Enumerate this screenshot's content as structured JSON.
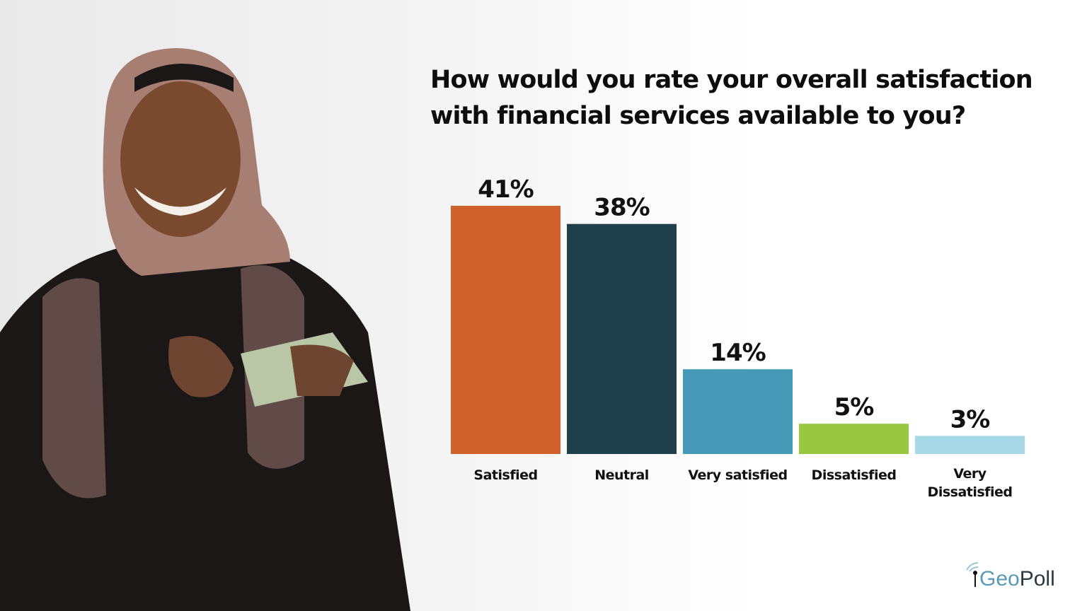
{
  "title": "How would you rate your overall satisfaction with financial services available to you?",
  "logo": {
    "part1": "Geo",
    "part2": "Poll"
  },
  "chart_data": {
    "type": "bar",
    "title": "How would you rate your overall satisfaction with financial services available to you?",
    "categories": [
      "Satisfied",
      "Neutral",
      "Very satisfied",
      "Dissatisfied",
      "Very Dissatisfied"
    ],
    "category_lines": [
      [
        "Satisfied"
      ],
      [
        "Neutral"
      ],
      [
        "Very satisfied"
      ],
      [
        "Dissatisfied"
      ],
      [
        "Very",
        "Dissatisfied"
      ]
    ],
    "values": [
      41,
      38,
      14,
      5,
      3
    ],
    "labels": [
      "41%",
      "38%",
      "14%",
      "5%",
      "3%"
    ],
    "colors": [
      "#d0622d",
      "#1f3f4b",
      "#4699b7",
      "#99c840",
      "#a7d8e6"
    ],
    "ylim": [
      0,
      41
    ],
    "grid": false,
    "xlabel": "",
    "ylabel": ""
  }
}
